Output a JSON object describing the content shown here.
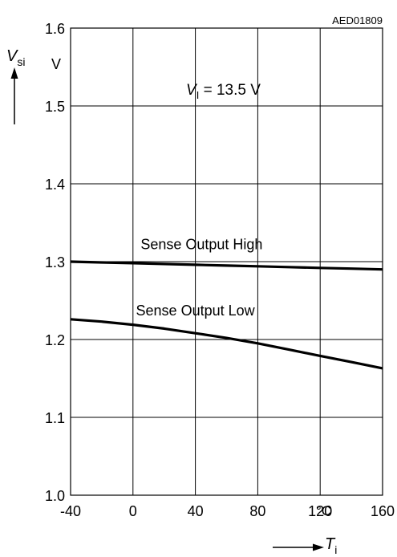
{
  "chart_data": {
    "type": "line",
    "figure_id": "AED01809",
    "annotation": {
      "prefix": "V",
      "sub": "I",
      "rest": " = 13.5 V"
    },
    "x_axis": {
      "symbol": "T",
      "subscript": "i",
      "unit": "°C",
      "range": [
        -40,
        160
      ],
      "ticks": [
        -40,
        0,
        40,
        80,
        120,
        160
      ],
      "tick_labels": [
        "-40",
        "0",
        "40",
        "80",
        "120",
        "160"
      ]
    },
    "y_axis": {
      "symbol": "V",
      "subscript": "si",
      "unit": "V",
      "range": [
        1.0,
        1.6
      ],
      "ticks": [
        1.0,
        1.1,
        1.2,
        1.3,
        1.4,
        1.5,
        1.6
      ],
      "tick_labels": [
        "1.0",
        "1.1",
        "1.2",
        "1.3",
        "1.4",
        "1.5",
        "1.6"
      ]
    },
    "grid": true,
    "series": [
      {
        "name": "Sense Output High",
        "x": [
          -40,
          -20,
          0,
          20,
          40,
          60,
          80,
          100,
          120,
          140,
          160
        ],
        "y": [
          1.3,
          1.299,
          1.298,
          1.297,
          1.296,
          1.295,
          1.294,
          1.293,
          1.292,
          1.291,
          1.29
        ]
      },
      {
        "name": "Sense Output Low",
        "x": [
          -40,
          -20,
          0,
          20,
          40,
          60,
          80,
          100,
          120,
          140,
          160
        ],
        "y": [
          1.226,
          1.223,
          1.219,
          1.214,
          1.208,
          1.202,
          1.195,
          1.187,
          1.179,
          1.171,
          1.163
        ]
      }
    ]
  },
  "colors": {
    "line": "#000000",
    "grid": "#000000",
    "background": "#ffffff"
  }
}
